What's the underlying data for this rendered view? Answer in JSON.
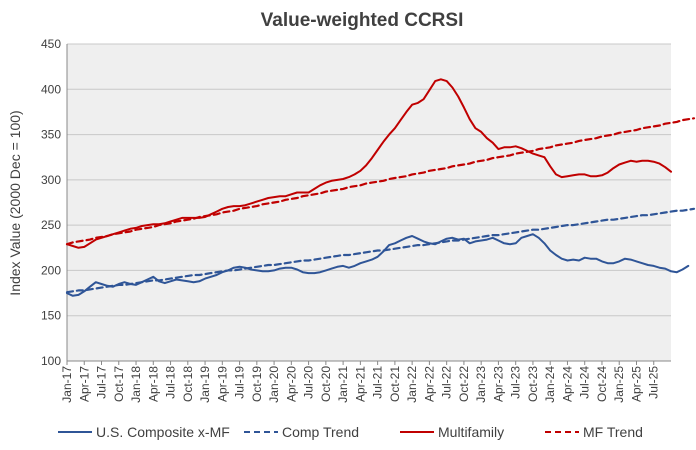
{
  "chart_data": {
    "type": "line",
    "title": "Value-weighted  CCRSI",
    "xlabel": "",
    "ylabel": "Index  Value (2000 Dec = 100)",
    "ylim": [
      100,
      450
    ],
    "yticks": [
      100,
      150,
      200,
      250,
      300,
      350,
      400,
      450
    ],
    "grid": true,
    "legend_position": "bottom",
    "x_ticks": [
      "Jan-17",
      "Apr-17",
      "Jul-17",
      "Oct-17",
      "Jan-18",
      "Apr-18",
      "Jul-18",
      "Oct-18",
      "Jan-19",
      "Apr-19",
      "Jul-19",
      "Oct-19",
      "Jan-20",
      "Apr-20",
      "Jul-20",
      "Oct-20",
      "Jan-21",
      "Apr-21",
      "Jul-21",
      "Oct-21",
      "Jan-22",
      "Apr-22",
      "Jul-22",
      "Oct-22",
      "Jan-23",
      "Apr-23",
      "Jul-23",
      "Oct-23",
      "Jan-24",
      "Apr-24",
      "Jul-24",
      "Oct-24",
      "Jan-25",
      "Apr-25",
      "Jul-25"
    ],
    "series": [
      {
        "name": "U.S. Composite x-MF",
        "color": "#2F5597",
        "dash": "solid",
        "values": [
          175,
          172,
          173,
          177,
          182,
          187,
          185,
          183,
          182,
          185,
          187,
          185,
          184,
          187,
          190,
          193,
          188,
          186,
          188,
          190,
          189,
          188,
          187,
          188,
          191,
          193,
          195,
          198,
          200,
          203,
          204,
          203,
          201,
          200,
          199,
          199,
          200,
          202,
          203,
          203,
          201,
          198,
          197,
          197,
          198,
          200,
          202,
          204,
          205,
          203,
          205,
          208,
          210,
          212,
          215,
          221,
          228,
          230,
          233,
          236,
          238,
          235,
          232,
          230,
          229,
          232,
          235,
          236,
          234,
          235,
          230,
          232,
          233,
          234,
          236,
          233,
          230,
          229,
          230,
          236,
          238,
          240,
          236,
          230,
          222,
          217,
          213,
          211,
          212,
          211,
          214,
          213,
          213,
          210,
          208,
          208,
          210,
          213,
          212,
          210,
          208,
          206,
          205,
          203,
          202,
          199,
          198,
          201,
          205
        ]
      },
      {
        "name": "Comp Trend",
        "color": "#2F5597",
        "dash": "dashed",
        "values": [
          176,
          177,
          178,
          178,
          179,
          180,
          181,
          182,
          183,
          184,
          184,
          185,
          186,
          187,
          188,
          189,
          189,
          190,
          191,
          192,
          193,
          194,
          195,
          195,
          196,
          197,
          198,
          199,
          200,
          200,
          201,
          202,
          203,
          204,
          205,
          206,
          206,
          207,
          208,
          209,
          210,
          211,
          211,
          212,
          213,
          214,
          215,
          216,
          217,
          217,
          218,
          219,
          220,
          221,
          222,
          222,
          223,
          224,
          225,
          226,
          227,
          228,
          228,
          229,
          230,
          231,
          232,
          233,
          233,
          234,
          235,
          236,
          237,
          238,
          239,
          239,
          240,
          241,
          242,
          243,
          244,
          245,
          245,
          246,
          247,
          248,
          249,
          250,
          250,
          251,
          252,
          253,
          254,
          255,
          256,
          256,
          257,
          258,
          259,
          260,
          261,
          261,
          262,
          263,
          264,
          265,
          266,
          266,
          267,
          268
        ]
      },
      {
        "name": "Multifamily",
        "color": "#C00000",
        "dash": "solid",
        "values": [
          229,
          227,
          225,
          226,
          230,
          234,
          236,
          238,
          240,
          242,
          244,
          246,
          247,
          249,
          250,
          251,
          251,
          252,
          254,
          256,
          258,
          258,
          258,
          258,
          259,
          262,
          265,
          268,
          270,
          271,
          271,
          272,
          274,
          276,
          278,
          280,
          281,
          282,
          282,
          284,
          286,
          286,
          286,
          290,
          294,
          297,
          299,
          300,
          301,
          303,
          306,
          310,
          316,
          324,
          333,
          342,
          350,
          357,
          366,
          375,
          383,
          385,
          389,
          399,
          409,
          411,
          409,
          402,
          392,
          380,
          367,
          357,
          353,
          346,
          341,
          334,
          336,
          336,
          337,
          335,
          332,
          329,
          327,
          325,
          315,
          306,
          303,
          304,
          305,
          306,
          306,
          304,
          304,
          305,
          308,
          313,
          317,
          319,
          321,
          320,
          321,
          321,
          320,
          318,
          314,
          309
        ]
      },
      {
        "name": "MF Trend",
        "color": "#C00000",
        "dash": "dashed",
        "values": [
          229,
          231,
          232,
          233,
          234,
          236,
          237,
          238,
          240,
          241,
          242,
          243,
          245,
          246,
          247,
          248,
          250,
          251,
          252,
          254,
          255,
          256,
          257,
          259,
          260,
          261,
          262,
          264,
          265,
          266,
          268,
          269,
          270,
          271,
          273,
          274,
          275,
          276,
          278,
          279,
          280,
          282,
          283,
          284,
          285,
          287,
          288,
          289,
          290,
          292,
          293,
          294,
          296,
          297,
          298,
          299,
          301,
          302,
          303,
          304,
          306,
          307,
          308,
          310,
          311,
          312,
          313,
          315,
          316,
          317,
          318,
          320,
          321,
          322,
          324,
          325,
          326,
          327,
          329,
          330,
          331,
          332,
          334,
          335,
          336,
          338,
          339,
          340,
          341,
          343,
          344,
          345,
          346,
          348,
          349,
          350,
          352,
          353,
          354,
          355,
          357,
          358,
          359,
          360,
          362,
          363,
          364,
          366,
          367,
          368
        ]
      }
    ]
  }
}
